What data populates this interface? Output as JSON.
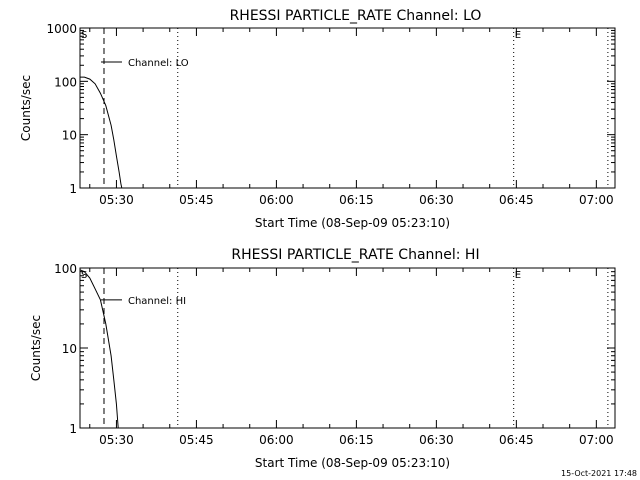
{
  "chart_data": [
    {
      "type": "line",
      "title": "RHESSI PARTICLE_RATE Channel: LO",
      "xlabel": "Start Time (08-Sep-09 05:23:10)",
      "ylabel": "Counts/sec",
      "yscale": "log",
      "ylim": [
        1,
        1000
      ],
      "xlim": [
        "05:23:10",
        "07:03:30"
      ],
      "xticks": [
        "05:30",
        "05:45",
        "06:00",
        "06:15",
        "06:30",
        "06:45",
        "07:00"
      ],
      "yticks": [
        "1",
        "10",
        "100",
        "1000"
      ],
      "series": [
        {
          "name": "Channel: LO",
          "x": [
            "05:23:10",
            "05:24:00",
            "05:25:00",
            "05:26:00",
            "05:27:00",
            "05:28:00",
            "05:29:00",
            "05:29:30",
            "05:30:00",
            "05:30:30",
            "05:30:50",
            "05:31:00"
          ],
          "y": [
            120,
            120,
            110,
            90,
            60,
            35,
            15,
            8,
            4,
            2,
            1.2,
            1
          ]
        }
      ],
      "markers": [
        {
          "label": "S",
          "time": "05:23:10",
          "style": "dotted"
        },
        {
          "label": "",
          "time": "05:27:40",
          "style": "dashed"
        },
        {
          "label": "",
          "time": "05:41:30",
          "style": "dotted"
        },
        {
          "label": "E",
          "time": "06:44:30",
          "style": "dotted"
        },
        {
          "label": "",
          "time": "07:02:10",
          "style": "dotted"
        }
      ],
      "annotation": {
        "text": "Channel: LO",
        "time": "05:27:40",
        "value": 230
      }
    },
    {
      "type": "line",
      "title": "RHESSI PARTICLE_RATE Channel: HI",
      "xlabel": "Start Time (08-Sep-09 05:23:10)",
      "ylabel": "Counts/sec",
      "yscale": "log",
      "ylim": [
        1,
        100
      ],
      "xlim": [
        "05:23:10",
        "07:03:30"
      ],
      "xticks": [
        "05:30",
        "05:45",
        "06:00",
        "06:15",
        "06:30",
        "06:45",
        "07:00"
      ],
      "yticks": [
        "1",
        "10",
        "100"
      ],
      "series": [
        {
          "name": "Channel: HI",
          "x": [
            "05:23:10",
            "05:24:00",
            "05:25:00",
            "05:26:00",
            "05:27:00",
            "05:28:00",
            "05:29:00",
            "05:29:30",
            "05:30:00",
            "05:30:20"
          ],
          "y": [
            95,
            90,
            75,
            55,
            40,
            20,
            8,
            4,
            2,
            1
          ]
        }
      ],
      "markers": [
        {
          "label": "S",
          "time": "05:23:10",
          "style": "dotted"
        },
        {
          "label": "",
          "time": "05:27:40",
          "style": "dashed"
        },
        {
          "label": "",
          "time": "05:41:30",
          "style": "dotted"
        },
        {
          "label": "E",
          "time": "06:44:30",
          "style": "dotted"
        },
        {
          "label": "",
          "time": "07:02:10",
          "style": "dotted"
        }
      ],
      "annotation": {
        "text": "Channel: HI",
        "time": "05:27:40",
        "value": 40
      }
    }
  ],
  "footer": {
    "timestamp": "15-Oct-2021 17:48"
  }
}
